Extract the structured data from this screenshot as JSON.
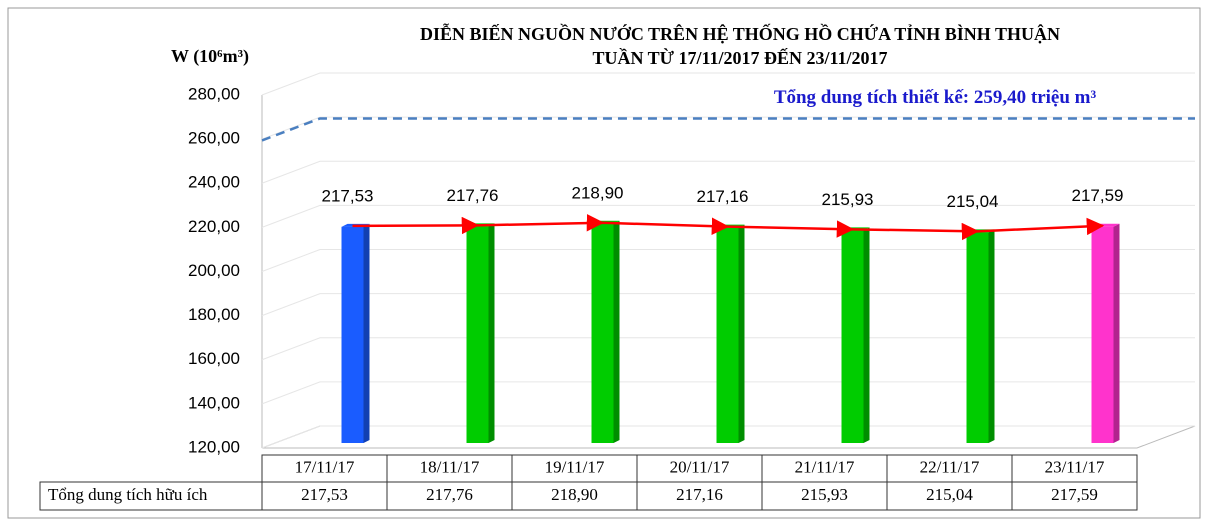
{
  "chart_data": {
    "type": "bar",
    "title": "DIỄN BIẾN NGUỒN NƯỚC TRÊN HỆ THỐNG HỒ CHỨA TỈNH BÌNH THUẬN",
    "subtitle": "TUẦN TỪ 17/11/2017 ĐẾN 23/11/2017",
    "y_axis_label": "W (10⁶m³)",
    "categories": [
      "17/11/17",
      "18/11/17",
      "19/11/17",
      "20/11/17",
      "21/11/17",
      "22/11/17",
      "23/11/17"
    ],
    "values": [
      217.53,
      217.76,
      218.9,
      217.16,
      215.93,
      215.04,
      217.59
    ],
    "value_labels": [
      "217,53",
      "217,76",
      "218,90",
      "217,16",
      "215,93",
      "215,04",
      "217,59"
    ],
    "colors": [
      "#1a5cff",
      "#00cc00",
      "#00cc00",
      "#00cc00",
      "#00cc00",
      "#00cc00",
      "#ff33cc"
    ],
    "line_color": "#ff0000",
    "table_row_label": "Tổng dung tích hữu ích",
    "reference_line": {
      "value": 259.4,
      "label": "Tổng dung tích thiết kế: 259,40 triệu m³",
      "color": "#4a7fc0"
    },
    "ylim": [
      120,
      280
    ],
    "yticks": [
      {
        "value": 120,
        "label": "120,00"
      },
      {
        "value": 140,
        "label": "140,00"
      },
      {
        "value": 160,
        "label": "160,00"
      },
      {
        "value": 180,
        "label": "180,00"
      },
      {
        "value": 200,
        "label": "200,00"
      },
      {
        "value": 220,
        "label": "220,00"
      },
      {
        "value": 240,
        "label": "240,00"
      },
      {
        "value": 260,
        "label": "260,00"
      },
      {
        "value": 280,
        "label": "280,00"
      }
    ],
    "grid": true
  }
}
